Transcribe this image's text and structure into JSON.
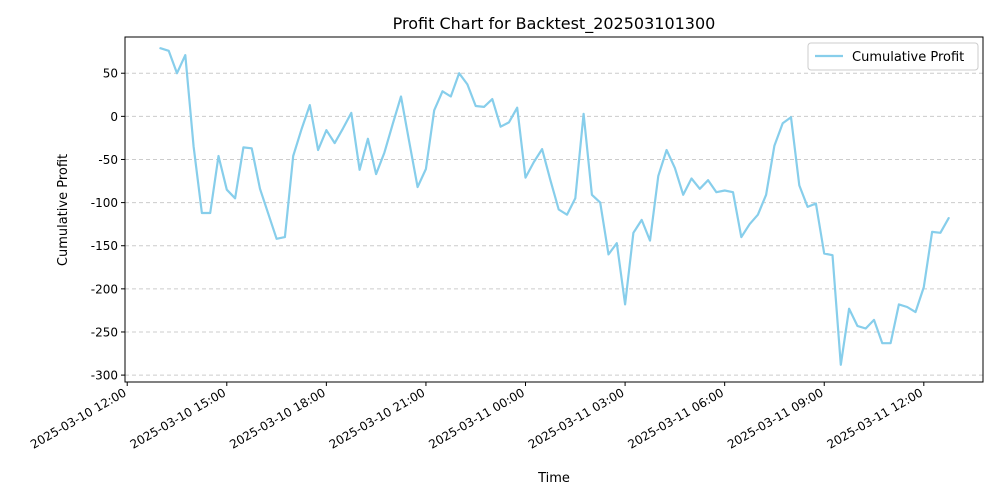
{
  "chart_data": {
    "type": "line",
    "title": "Profit Chart for Backtest_202503101300",
    "xlabel": "Time",
    "ylabel": "Cumulative Profit",
    "x_tick_labels": [
      "2025-03-10 12:00",
      "2025-03-10 15:00",
      "2025-03-10 18:00",
      "2025-03-10 21:00",
      "2025-03-11 00:00",
      "2025-03-11 03:00",
      "2025-03-11 06:00",
      "2025-03-11 09:00",
      "2025-03-11 12:00"
    ],
    "y_ticks": [
      50,
      0,
      -50,
      -100,
      -150,
      -200,
      -250,
      -300
    ],
    "ylim": [
      -308,
      92
    ],
    "xlim": [
      "2025-03-10 11:56",
      "2025-03-11 13:47"
    ],
    "grid": "y-dashed",
    "legend_position": "top-right",
    "series": [
      {
        "name": "Cumulative Profit",
        "color": "#87ceeb",
        "x": [
          "2025-03-10 13:00",
          "2025-03-10 13:15",
          "2025-03-10 13:30",
          "2025-03-10 13:45",
          "2025-03-10 14:00",
          "2025-03-10 14:15",
          "2025-03-10 14:30",
          "2025-03-10 14:45",
          "2025-03-10 15:00",
          "2025-03-10 15:15",
          "2025-03-10 15:30",
          "2025-03-10 15:45",
          "2025-03-10 16:00",
          "2025-03-10 16:15",
          "2025-03-10 16:30",
          "2025-03-10 16:45",
          "2025-03-10 17:00",
          "2025-03-10 17:15",
          "2025-03-10 17:30",
          "2025-03-10 17:45",
          "2025-03-10 18:00",
          "2025-03-10 18:15",
          "2025-03-10 18:30",
          "2025-03-10 18:45",
          "2025-03-10 19:00",
          "2025-03-10 19:15",
          "2025-03-10 19:30",
          "2025-03-10 19:45",
          "2025-03-10 20:00",
          "2025-03-10 20:15",
          "2025-03-10 20:30",
          "2025-03-10 20:45",
          "2025-03-10 21:00",
          "2025-03-10 21:15",
          "2025-03-10 21:30",
          "2025-03-10 21:45",
          "2025-03-10 22:00",
          "2025-03-10 22:15",
          "2025-03-10 22:30",
          "2025-03-10 22:45",
          "2025-03-10 23:00",
          "2025-03-10 23:15",
          "2025-03-10 23:30",
          "2025-03-10 23:45",
          "2025-03-11 00:00",
          "2025-03-11 00:15",
          "2025-03-11 00:30",
          "2025-03-11 00:45",
          "2025-03-11 01:00",
          "2025-03-11 01:15",
          "2025-03-11 01:30",
          "2025-03-11 01:45",
          "2025-03-11 02:00",
          "2025-03-11 02:15",
          "2025-03-11 02:30",
          "2025-03-11 02:45",
          "2025-03-11 03:00",
          "2025-03-11 03:15",
          "2025-03-11 03:30",
          "2025-03-11 03:45",
          "2025-03-11 04:00",
          "2025-03-11 04:15",
          "2025-03-11 04:30",
          "2025-03-11 04:45",
          "2025-03-11 05:00",
          "2025-03-11 05:15",
          "2025-03-11 05:30",
          "2025-03-11 05:45",
          "2025-03-11 06:00",
          "2025-03-11 06:15",
          "2025-03-11 06:30",
          "2025-03-11 06:45",
          "2025-03-11 07:00",
          "2025-03-11 07:15",
          "2025-03-11 07:30",
          "2025-03-11 07:45",
          "2025-03-11 08:00",
          "2025-03-11 08:15",
          "2025-03-11 08:30",
          "2025-03-11 08:45",
          "2025-03-11 09:00",
          "2025-03-11 09:15",
          "2025-03-11 09:30",
          "2025-03-11 09:45",
          "2025-03-11 10:00",
          "2025-03-11 10:15",
          "2025-03-11 10:30",
          "2025-03-11 10:45",
          "2025-03-11 11:00",
          "2025-03-11 11:15",
          "2025-03-11 11:30",
          "2025-03-11 11:45",
          "2025-03-11 12:00",
          "2025-03-11 12:15",
          "2025-03-11 12:30",
          "2025-03-11 12:45"
        ],
        "values": [
          79,
          76,
          50,
          71,
          -35,
          -112,
          -112,
          -46,
          -85,
          -95,
          -36,
          -37,
          -84,
          -113,
          -142,
          -140,
          -46,
          -15,
          13,
          -39,
          -16,
          -31,
          -14,
          4,
          -62,
          -26,
          -67,
          -42,
          -9,
          23,
          -30,
          -82,
          -61,
          7,
          29,
          23,
          50,
          37,
          12,
          11,
          20,
          -12,
          -7,
          10,
          -71,
          -53,
          -38,
          -74,
          -108,
          -114,
          -95,
          3,
          -91,
          -100,
          -160,
          -147,
          -218,
          -135,
          -120,
          -144,
          -69,
          -39,
          -60,
          -91,
          -72,
          -84,
          -74,
          -88,
          -86,
          -88,
          -140,
          -125,
          -114,
          -91,
          -34,
          -8,
          -1,
          -80,
          -105,
          -101,
          -159,
          -161,
          -288,
          -223,
          -243,
          -246,
          -236,
          -263,
          -263,
          -218,
          -221,
          -227,
          -198,
          -134,
          -135,
          -118
        ]
      }
    ]
  }
}
